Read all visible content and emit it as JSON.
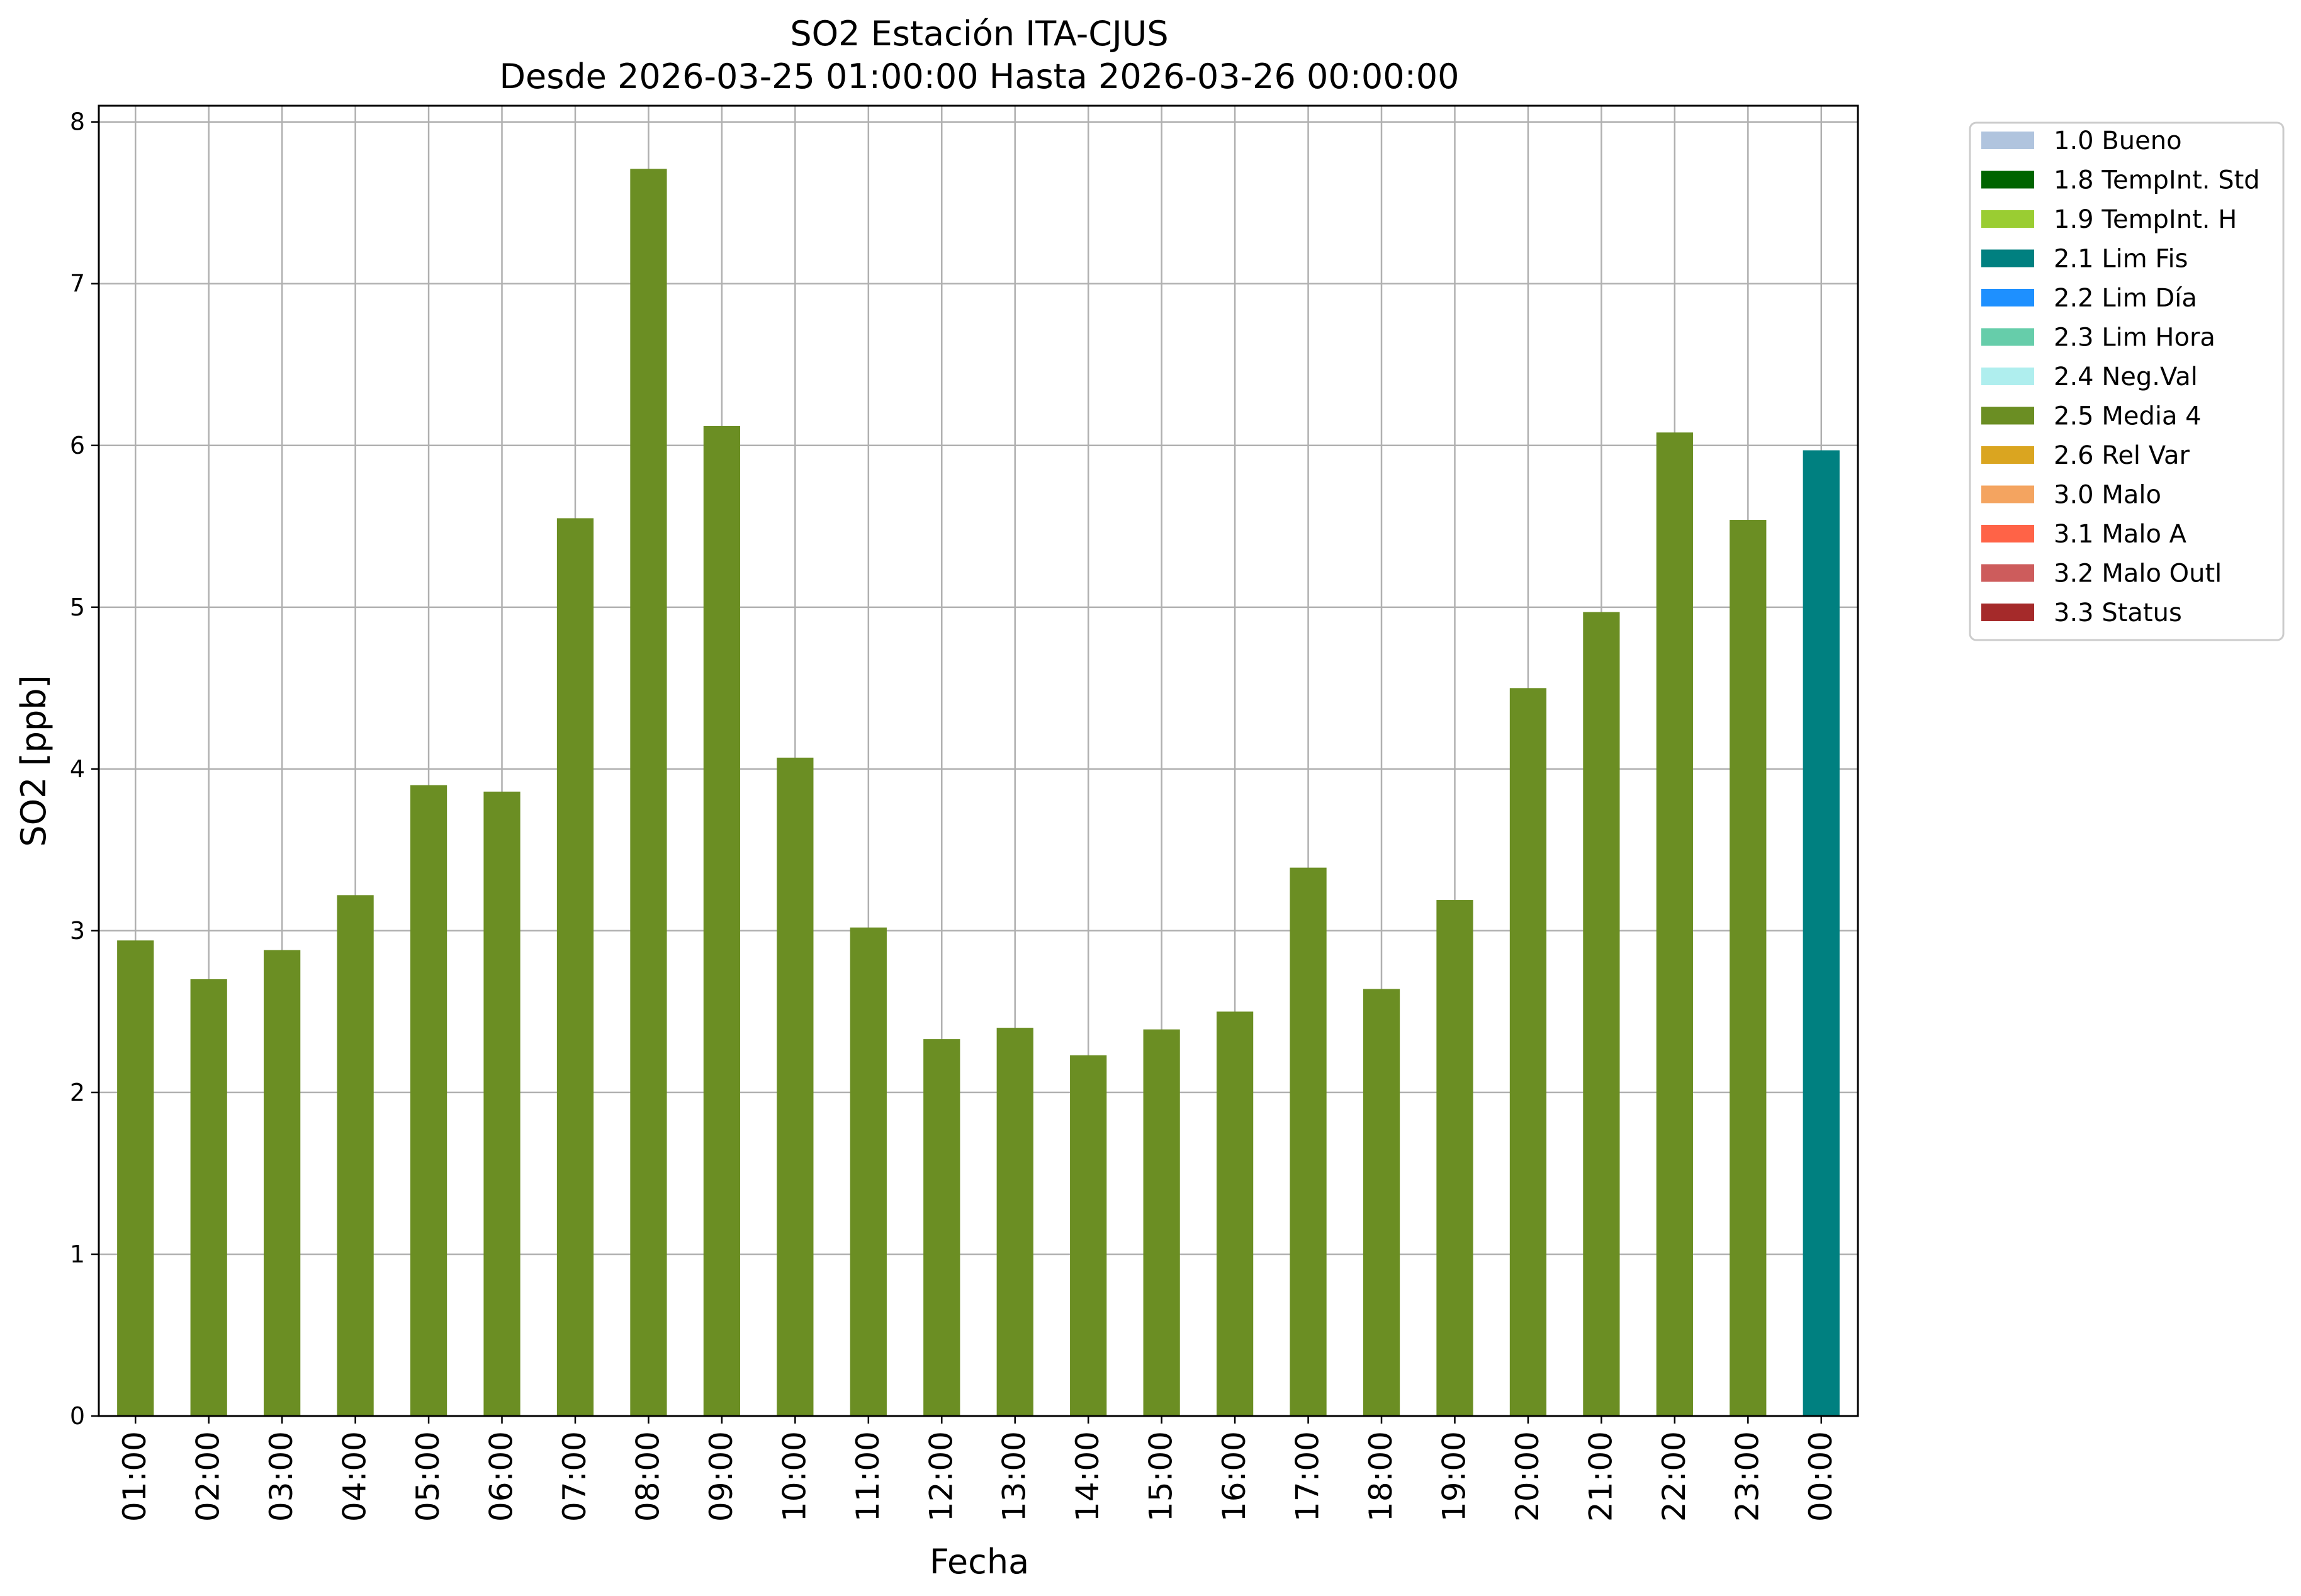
{
  "chart_data": {
    "type": "bar",
    "title": "SO2 Estación ITA-CJUS",
    "subtitle": "Desde 2026-03-25 01:00:00 Hasta 2026-03-26 00:00:00",
    "xlabel": "Fecha",
    "ylabel": "SO2 [ppb]",
    "ylim": [
      0,
      8.1
    ],
    "yticks": [
      0,
      1,
      2,
      3,
      4,
      5,
      6,
      7,
      8
    ],
    "grid": true,
    "legend_position": "outside-top-right",
    "categories": [
      "01:00",
      "02:00",
      "03:00",
      "04:00",
      "05:00",
      "06:00",
      "07:00",
      "08:00",
      "09:00",
      "10:00",
      "11:00",
      "12:00",
      "13:00",
      "14:00",
      "15:00",
      "16:00",
      "17:00",
      "18:00",
      "19:00",
      "20:00",
      "21:00",
      "22:00",
      "23:00",
      "00:00"
    ],
    "values": [
      2.94,
      2.7,
      2.88,
      3.22,
      3.9,
      3.86,
      5.55,
      7.71,
      6.12,
      4.07,
      3.02,
      2.33,
      2.4,
      2.23,
      2.39,
      2.5,
      3.39,
      2.64,
      3.19,
      4.5,
      4.97,
      6.08,
      5.54,
      5.97
    ],
    "bar_flags": [
      "2.5 Media 4",
      "2.5 Media 4",
      "2.5 Media 4",
      "2.5 Media 4",
      "2.5 Media 4",
      "2.5 Media 4",
      "2.5 Media 4",
      "2.5 Media 4",
      "2.5 Media 4",
      "2.5 Media 4",
      "2.5 Media 4",
      "2.5 Media 4",
      "2.5 Media 4",
      "2.5 Media 4",
      "2.5 Media 4",
      "2.5 Media 4",
      "2.5 Media 4",
      "2.5 Media 4",
      "2.5 Media 4",
      "2.5 Media 4",
      "2.5 Media 4",
      "2.5 Media 4",
      "2.5 Media 4",
      "2.1 Lim Fis"
    ],
    "legend": [
      {
        "label": "1.0 Bueno",
        "color": "#b0c4de"
      },
      {
        "label": "1.8 TempInt. Std",
        "color": "#006400"
      },
      {
        "label": "1.9 TempInt. H",
        "color": "#9acd32"
      },
      {
        "label": "2.1 Lim Fis",
        "color": "#008080"
      },
      {
        "label": "2.2 Lim Día",
        "color": "#1e90ff"
      },
      {
        "label": "2.3 Lim Hora",
        "color": "#66cdaa"
      },
      {
        "label": "2.4 Neg.Val",
        "color": "#afeeee"
      },
      {
        "label": "2.5 Media 4",
        "color": "#6b8e23"
      },
      {
        "label": "2.6 Rel Var",
        "color": "#daa520"
      },
      {
        "label": "3.0 Malo",
        "color": "#f4a460"
      },
      {
        "label": "3.1 Malo A",
        "color": "#ff6347"
      },
      {
        "label": "3.2 Malo Outl",
        "color": "#cd5c5c"
      },
      {
        "label": "3.3 Status",
        "color": "#a52a2a"
      }
    ]
  }
}
